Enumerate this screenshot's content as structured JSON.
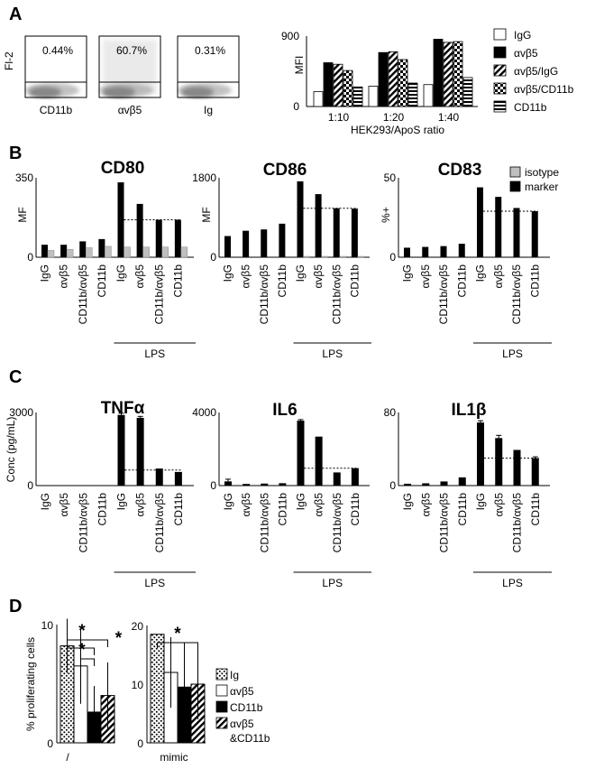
{
  "panels": {
    "a": "A",
    "b": "B",
    "c": "C",
    "d": "D"
  },
  "flow": {
    "ylabel": "Fl-2",
    "plots": [
      {
        "pct": "0.44%",
        "xlabel": "CD11b"
      },
      {
        "pct": "60.7%",
        "xlabel": "αvβ5"
      },
      {
        "pct": "0.31%",
        "xlabel": "Ig"
      }
    ]
  },
  "colors": {
    "black": "#000000",
    "gray": "#bfbfbf",
    "white": "#ffffff"
  },
  "chart_data": [
    {
      "id": "A-mfi",
      "type": "bar",
      "ylabel": "MFI",
      "xlabel": "HEK293/ApoS ratio",
      "ylim": [
        0,
        900
      ],
      "yticks": [
        0,
        900
      ],
      "categories": [
        "1:10",
        "1:20",
        "1:40"
      ],
      "series": [
        {
          "name": "IgG",
          "fill": "white",
          "values": [
            190,
            260,
            280
          ]
        },
        {
          "name": "αvβ5",
          "fill": "black",
          "values": [
            560,
            690,
            860
          ]
        },
        {
          "name": "αvβ5/IgG",
          "fill": "diag",
          "values": [
            540,
            700,
            820
          ]
        },
        {
          "name": "αvβ5/CD11b",
          "fill": "checker",
          "values": [
            460,
            600,
            830
          ]
        },
        {
          "name": "CD11b",
          "fill": "hstripe",
          "values": [
            250,
            300,
            370
          ]
        }
      ]
    },
    {
      "id": "B-CD80",
      "type": "bar",
      "title": "CD80",
      "ylabel": "MF",
      "ylim": [
        0,
        350
      ],
      "yticks": [
        0,
        350
      ],
      "categories": [
        "IgG",
        "αvβ5",
        "CD11b/αvβ5",
        "CD11b",
        "IgG",
        "αvβ5",
        "CD11b/αvβ5",
        "CD11b"
      ],
      "group_label": "LPS",
      "series": [
        {
          "name": "marker",
          "values": [
            55,
            55,
            70,
            80,
            330,
            235,
            165,
            165
          ]
        },
        {
          "name": "isotype",
          "values": [
            30,
            35,
            42,
            48,
            45,
            45,
            45,
            45
          ]
        }
      ],
      "dotted_ref": 165
    },
    {
      "id": "B-CD86",
      "type": "bar",
      "title": "CD86",
      "ylabel": "MF",
      "ylim": [
        0,
        1800
      ],
      "yticks": [
        0,
        1800
      ],
      "categories": [
        "IgG",
        "αvβ5",
        "CD11b/αvβ5",
        "CD11b",
        "IgG",
        "αvβ5",
        "CD11b/αvβ5",
        "CD11b"
      ],
      "group_label": "LPS",
      "series": [
        {
          "name": "marker",
          "values": [
            480,
            600,
            630,
            760,
            1720,
            1430,
            1110,
            1100
          ]
        },
        {
          "name": "isotype",
          "values": [
            0,
            0,
            0,
            0,
            20,
            20,
            20,
            20
          ]
        }
      ],
      "dotted_ref": 1110
    },
    {
      "id": "B-CD83",
      "type": "bar",
      "title": "CD83",
      "ylabel": "%+",
      "ylim": [
        0,
        50
      ],
      "yticks": [
        0,
        50
      ],
      "categories": [
        "IgG",
        "αvβ5",
        "CD11b/αvβ5",
        "CD11b",
        "IgG",
        "αvβ5",
        "CD11b/αvβ5",
        "CD11b"
      ],
      "group_label": "LPS",
      "legend": [
        "isotype",
        "marker"
      ],
      "series": [
        {
          "name": "marker",
          "values": [
            6,
            6.5,
            7,
            8.5,
            44,
            38,
            31,
            29
          ]
        }
      ],
      "dotted_ref": 29
    },
    {
      "id": "C-TNFa",
      "type": "bar",
      "title": "TNFα",
      "ylabel": "Conc (pg/mL)",
      "ylim": [
        0,
        3000
      ],
      "yticks": [
        0,
        3000
      ],
      "categories": [
        "IgG",
        "αvβ5",
        "CD11b/αvβ5",
        "CD11b",
        "IgG",
        "αvβ5",
        "CD11b/αvβ5",
        "CD11b"
      ],
      "group_label": "LPS",
      "series": [
        {
          "name": "marker",
          "values": [
            10,
            0,
            0,
            0,
            2900,
            2780,
            700,
            560
          ],
          "errors": [
            0,
            0,
            0,
            0,
            70,
            60,
            0,
            0
          ]
        }
      ],
      "dotted_ref": 640
    },
    {
      "id": "C-IL6",
      "type": "bar",
      "title": "IL6",
      "ylabel": "",
      "ylim": [
        0,
        4000
      ],
      "yticks": [
        0,
        4000
      ],
      "categories": [
        "IgG",
        "αvβ5",
        "CD11b/αvβ5",
        "CD11b",
        "IgG",
        "αvβ5",
        "CD11b/αvβ5",
        "CD11b"
      ],
      "group_label": "LPS",
      "series": [
        {
          "name": "marker",
          "values": [
            230,
            90,
            110,
            130,
            3550,
            2680,
            720,
            950
          ],
          "errors": [
            120,
            0,
            0,
            0,
            60,
            0,
            0,
            0
          ]
        }
      ],
      "dotted_ref": 950
    },
    {
      "id": "C-IL1b",
      "type": "bar",
      "title": "IL1β",
      "ylabel": "",
      "ylim": [
        0,
        80
      ],
      "yticks": [
        0,
        80
      ],
      "categories": [
        "IgG",
        "αvβ5",
        "CD11b/αvβ5",
        "CD11b",
        "IgG",
        "αvβ5",
        "CD11b/αvβ5",
        "CD11b"
      ],
      "group_label": "LPS",
      "series": [
        {
          "name": "marker",
          "values": [
            2,
            2.5,
            4.5,
            9,
            69,
            52,
            39,
            30
          ],
          "errors": [
            0,
            0,
            0,
            0,
            2,
            3,
            0,
            1.5
          ]
        }
      ],
      "dotted_ref": 30
    },
    {
      "id": "D-left",
      "type": "bar",
      "ylabel": "% proliferating cells",
      "ylim": [
        0,
        10
      ],
      "yticks": [
        0,
        10
      ],
      "xlabel": "/",
      "categories": [
        "Ig",
        "αvβ5",
        "CD11b",
        "αvβ5 &CD11b"
      ],
      "values": [
        8.2,
        6.5,
        2.6,
        4.0
      ],
      "errors": [
        2.3,
        3.2,
        2.2,
        2.8
      ],
      "fills": [
        "dots",
        "white",
        "black",
        "diag"
      ]
    },
    {
      "id": "D-right",
      "type": "bar",
      "ylim": [
        0,
        20
      ],
      "yticks": [
        0,
        10,
        20
      ],
      "xlabel": "mimic",
      "categories": [
        "Ig",
        "αvβ5",
        "CD11b",
        "αvβ5 &CD11b"
      ],
      "values": [
        18.5,
        12,
        9.5,
        10
      ],
      "errors": [
        0,
        6,
        6.5,
        6
      ],
      "fills": [
        "dots",
        "white",
        "black",
        "diag"
      ]
    }
  ],
  "legend_b": [
    "isotype",
    "marker"
  ],
  "legend_d": [
    "Ig",
    "αvβ5",
    "CD11b",
    "αvβ5",
    "&CD11b"
  ],
  "star": "*"
}
